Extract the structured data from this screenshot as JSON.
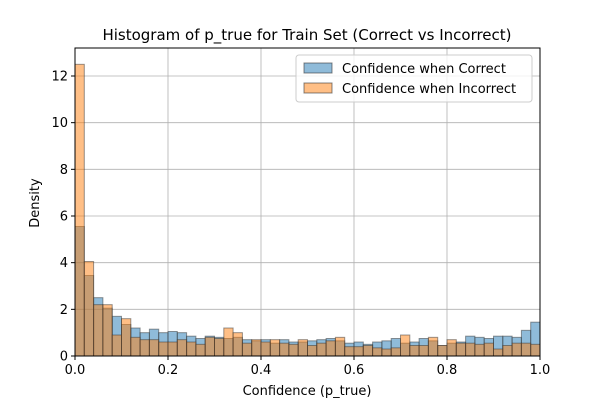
{
  "chart_data": {
    "type": "bar",
    "title": "Histogram of p_true for Train Set (Correct vs Incorrect)",
    "xlabel": "Confidence (p_true)",
    "ylabel": "Density",
    "xlim": [
      0,
      1
    ],
    "ylim": [
      0,
      13.2
    ],
    "xticks": [
      "0.0",
      "0.2",
      "0.4",
      "0.6",
      "0.8",
      "1.0"
    ],
    "yticks": [
      "0",
      "2",
      "4",
      "6",
      "8",
      "10",
      "12"
    ],
    "grid": true,
    "legend_position": "upper-right",
    "bins": 50,
    "bin_width": 0.02,
    "colors": {
      "correct": "#1f77b4",
      "incorrect": "#ff7f0e",
      "overlap": "#a76c44",
      "edge": "#333333"
    },
    "series": [
      {
        "name": "Confidence when Correct",
        "values": [
          5.55,
          3.45,
          2.5,
          2.05,
          1.7,
          1.35,
          1.2,
          1.0,
          1.15,
          1.0,
          1.05,
          1.0,
          0.85,
          0.75,
          0.85,
          0.8,
          0.75,
          0.8,
          0.7,
          0.65,
          0.7,
          0.55,
          0.7,
          0.6,
          0.6,
          0.65,
          0.7,
          0.75,
          0.65,
          0.55,
          0.6,
          0.5,
          0.6,
          0.65,
          0.75,
          0.55,
          0.6,
          0.75,
          0.65,
          0.45,
          0.55,
          0.6,
          0.85,
          0.8,
          0.75,
          0.85,
          0.85,
          0.8,
          1.1,
          1.45
        ]
      },
      {
        "name": "Confidence when Incorrect",
        "values": [
          12.5,
          4.05,
          2.2,
          2.2,
          0.9,
          1.6,
          0.8,
          0.7,
          0.7,
          0.6,
          0.6,
          0.7,
          0.6,
          0.5,
          0.8,
          0.75,
          1.2,
          1.0,
          0.55,
          0.7,
          0.6,
          0.7,
          0.55,
          0.5,
          0.7,
          0.45,
          0.55,
          0.65,
          0.8,
          0.4,
          0.4,
          0.45,
          0.35,
          0.3,
          0.35,
          0.9,
          0.45,
          0.45,
          0.8,
          0.45,
          0.7,
          0.55,
          0.55,
          0.5,
          0.55,
          0.3,
          0.45,
          0.55,
          0.55,
          0.5
        ]
      }
    ]
  }
}
